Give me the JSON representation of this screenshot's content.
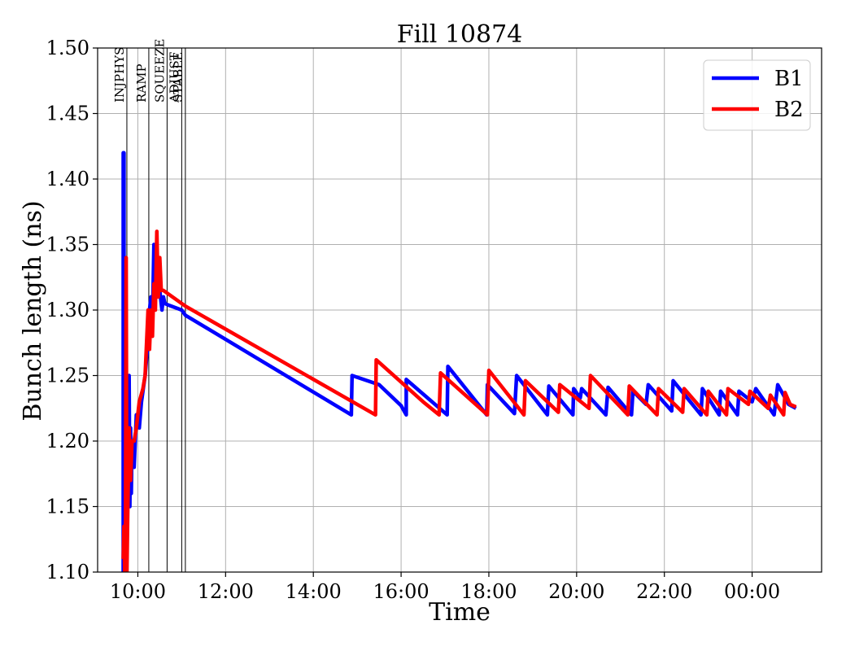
{
  "chart_data": {
    "type": "line",
    "title": "Fill 10874",
    "xlabel": "Time",
    "ylabel": "Bunch length (ns)",
    "xlim": [
      "09:05",
      "01:35"
    ],
    "ylim": [
      1.1,
      1.5
    ],
    "x_ticks": [
      "10:00",
      "12:00",
      "14:00",
      "16:00",
      "18:00",
      "20:00",
      "22:00",
      "00:00"
    ],
    "y_ticks": [
      "1.10",
      "1.15",
      "1.20",
      "1.25",
      "1.30",
      "1.35",
      "1.40",
      "1.45",
      "1.50"
    ],
    "grid": true,
    "legend_position": "top-right",
    "mode_markers": [
      {
        "label": "INJPHYS",
        "time": "09:45"
      },
      {
        "label": "RAMP",
        "time": "10:15"
      },
      {
        "label": "SQUEEZE",
        "time": "10:40"
      },
      {
        "label": "ADJUST",
        "time": "11:00"
      },
      {
        "label": "STABLE",
        "time": "11:05"
      }
    ],
    "series": [
      {
        "name": "B1",
        "color": "#0000ff",
        "points": [
          [
            "09:40",
            1.1
          ],
          [
            "09:40",
            1.42
          ],
          [
            "09:41",
            1.42
          ],
          [
            "09:41",
            1.1
          ],
          [
            "09:43",
            1.13
          ],
          [
            "09:44",
            1.12
          ],
          [
            "09:46",
            1.19
          ],
          [
            "09:47",
            1.16
          ],
          [
            "09:48",
            1.25
          ],
          [
            "09:49",
            1.15
          ],
          [
            "09:50",
            1.21
          ],
          [
            "09:51",
            1.16
          ],
          [
            "09:52",
            1.2
          ],
          [
            "09:55",
            1.18
          ],
          [
            "09:58",
            1.22
          ],
          [
            "10:02",
            1.21
          ],
          [
            "10:05",
            1.23
          ],
          [
            "10:10",
            1.25
          ],
          [
            "10:13",
            1.27
          ],
          [
            "10:16",
            1.3
          ],
          [
            "10:18",
            1.31
          ],
          [
            "10:20",
            1.29
          ],
          [
            "10:22",
            1.35
          ],
          [
            "10:23",
            1.31
          ],
          [
            "10:25",
            1.32
          ],
          [
            "10:27",
            1.31
          ],
          [
            "10:29",
            1.32
          ],
          [
            "10:31",
            1.31
          ],
          [
            "10:33",
            1.3
          ],
          [
            "10:35",
            1.31
          ],
          [
            "10:37",
            1.305
          ],
          [
            "10:41",
            1.304
          ],
          [
            "11:00",
            1.3
          ],
          [
            "11:05",
            1.296
          ],
          [
            "14:52",
            1.22
          ],
          [
            "14:53",
            1.25
          ],
          [
            "15:30",
            1.243
          ],
          [
            "16:00",
            1.227
          ],
          [
            "16:07",
            1.22
          ],
          [
            "16:07",
            1.247
          ],
          [
            "17:03",
            1.22
          ],
          [
            "17:04",
            1.257
          ],
          [
            "17:57",
            1.22
          ],
          [
            "17:58",
            1.243
          ],
          [
            "18:35",
            1.221
          ],
          [
            "18:38",
            1.25
          ],
          [
            "19:20",
            1.22
          ],
          [
            "19:22",
            1.242
          ],
          [
            "19:55",
            1.22
          ],
          [
            "19:56",
            1.24
          ],
          [
            "20:05",
            1.233
          ],
          [
            "20:07",
            1.24
          ],
          [
            "20:40",
            1.22
          ],
          [
            "20:43",
            1.241
          ],
          [
            "21:15",
            1.22
          ],
          [
            "21:17",
            1.238
          ],
          [
            "21:35",
            1.228
          ],
          [
            "21:38",
            1.243
          ],
          [
            "22:10",
            1.223
          ],
          [
            "22:12",
            1.246
          ],
          [
            "22:50",
            1.22
          ],
          [
            "22:52",
            1.24
          ],
          [
            "23:15",
            1.22
          ],
          [
            "23:17",
            1.238
          ],
          [
            "23:40",
            1.22
          ],
          [
            "23:42",
            1.238
          ],
          [
            "00:00",
            1.23
          ],
          [
            "00:05",
            1.24
          ],
          [
            "00:30",
            1.22
          ],
          [
            "00:35",
            1.243
          ],
          [
            "00:50",
            1.228
          ],
          [
            "01:00",
            1.225
          ]
        ]
      },
      {
        "name": "B2",
        "color": "#ff0000",
        "points": [
          [
            "09:40",
            1.11
          ],
          [
            "09:41",
            1.135
          ],
          [
            "09:42",
            1.1
          ],
          [
            "09:43",
            1.11
          ],
          [
            "09:44",
            1.34
          ],
          [
            "09:45",
            1.1
          ],
          [
            "09:46",
            1.14
          ],
          [
            "09:48",
            1.21
          ],
          [
            "09:50",
            1.17
          ],
          [
            "09:52",
            1.2
          ],
          [
            "09:55",
            1.2
          ],
          [
            "09:58",
            1.21
          ],
          [
            "10:02",
            1.23
          ],
          [
            "10:07",
            1.24
          ],
          [
            "10:10",
            1.25
          ],
          [
            "10:14",
            1.3
          ],
          [
            "10:16",
            1.27
          ],
          [
            "10:18",
            1.3
          ],
          [
            "10:20",
            1.28
          ],
          [
            "10:22",
            1.32
          ],
          [
            "10:24",
            1.3
          ],
          [
            "10:26",
            1.36
          ],
          [
            "10:28",
            1.31
          ],
          [
            "10:30",
            1.34
          ],
          [
            "10:32",
            1.315
          ],
          [
            "10:35",
            1.315
          ],
          [
            "11:05",
            1.303
          ],
          [
            "15:25",
            1.22
          ],
          [
            "15:26",
            1.262
          ],
          [
            "16:30",
            1.23
          ],
          [
            "16:52",
            1.22
          ],
          [
            "16:54",
            1.252
          ],
          [
            "17:58",
            1.22
          ],
          [
            "18:00",
            1.254
          ],
          [
            "18:48",
            1.22
          ],
          [
            "18:50",
            1.246
          ],
          [
            "19:35",
            1.222
          ],
          [
            "19:37",
            1.243
          ],
          [
            "20:17",
            1.225
          ],
          [
            "20:19",
            1.25
          ],
          [
            "21:10",
            1.22
          ],
          [
            "21:12",
            1.242
          ],
          [
            "21:50",
            1.22
          ],
          [
            "21:52",
            1.24
          ],
          [
            "22:25",
            1.222
          ],
          [
            "22:27",
            1.24
          ],
          [
            "22:58",
            1.22
          ],
          [
            "23:00",
            1.238
          ],
          [
            "23:25",
            1.22
          ],
          [
            "23:27",
            1.24
          ],
          [
            "23:55",
            1.228
          ],
          [
            "23:57",
            1.238
          ],
          [
            "00:22",
            1.225
          ],
          [
            "00:25",
            1.235
          ],
          [
            "00:43",
            1.22
          ],
          [
            "00:45",
            1.237
          ],
          [
            "00:52",
            1.228
          ],
          [
            "01:00",
            1.226
          ]
        ]
      }
    ]
  }
}
